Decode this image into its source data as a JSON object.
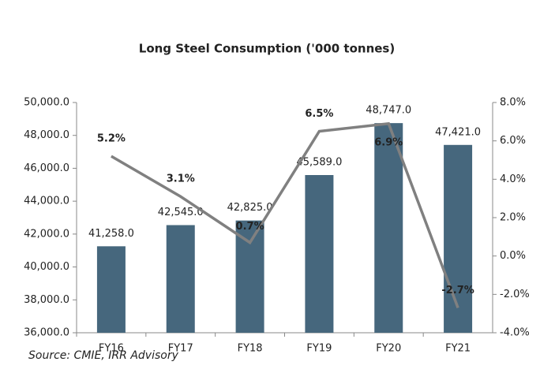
{
  "chart_data": {
    "type": "bar-line",
    "title": "Long Steel Consumption ('000 tonnes)",
    "source": "Source: CMIE, IRR Advisory",
    "categories": [
      "FY16",
      "FY17",
      "FY18",
      "FY19",
      "FY20",
      "FY21"
    ],
    "series": [
      {
        "type": "bar",
        "color": "#46677d",
        "values": [
          41258,
          42545,
          42825,
          45589,
          48747,
          47421
        ],
        "value_labels": [
          "41,258.0",
          "42,545.0",
          "42,825.0",
          "45,589.0",
          "48,747.0",
          "47,421.0"
        ]
      },
      {
        "type": "line",
        "axis": "y2",
        "color": "#808080",
        "values": [
          5.2,
          3.1,
          0.7,
          6.5,
          6.9,
          -2.7
        ],
        "value_labels": [
          "5.2%",
          "3.1%",
          "0.7%",
          "6.5%",
          "6.9%",
          "-2.7%"
        ]
      }
    ],
    "ylim": [
      36000,
      50000
    ],
    "yticks": [
      {
        "value": 36000,
        "label": "36,000.0"
      },
      {
        "value": 38000,
        "label": "38,000.0"
      },
      {
        "value": 40000,
        "label": "40,000.0"
      },
      {
        "value": 42000,
        "label": "42,000.0"
      },
      {
        "value": 44000,
        "label": "44,000.0"
      },
      {
        "value": 46000,
        "label": "46,000.0"
      },
      {
        "value": 48000,
        "label": "48,000.0"
      },
      {
        "value": 50000,
        "label": "50,000.0"
      }
    ],
    "y2lim": [
      -4,
      8
    ],
    "y2ticks": [
      {
        "value": -4,
        "label": "-4.0%"
      },
      {
        "value": -2,
        "label": "-2.0%"
      },
      {
        "value": 0,
        "label": "0.0%"
      },
      {
        "value": 2,
        "label": "2.0%"
      },
      {
        "value": 4,
        "label": "4.0%"
      },
      {
        "value": 6,
        "label": "6.0%"
      },
      {
        "value": 8,
        "label": "8.0%"
      }
    ]
  }
}
